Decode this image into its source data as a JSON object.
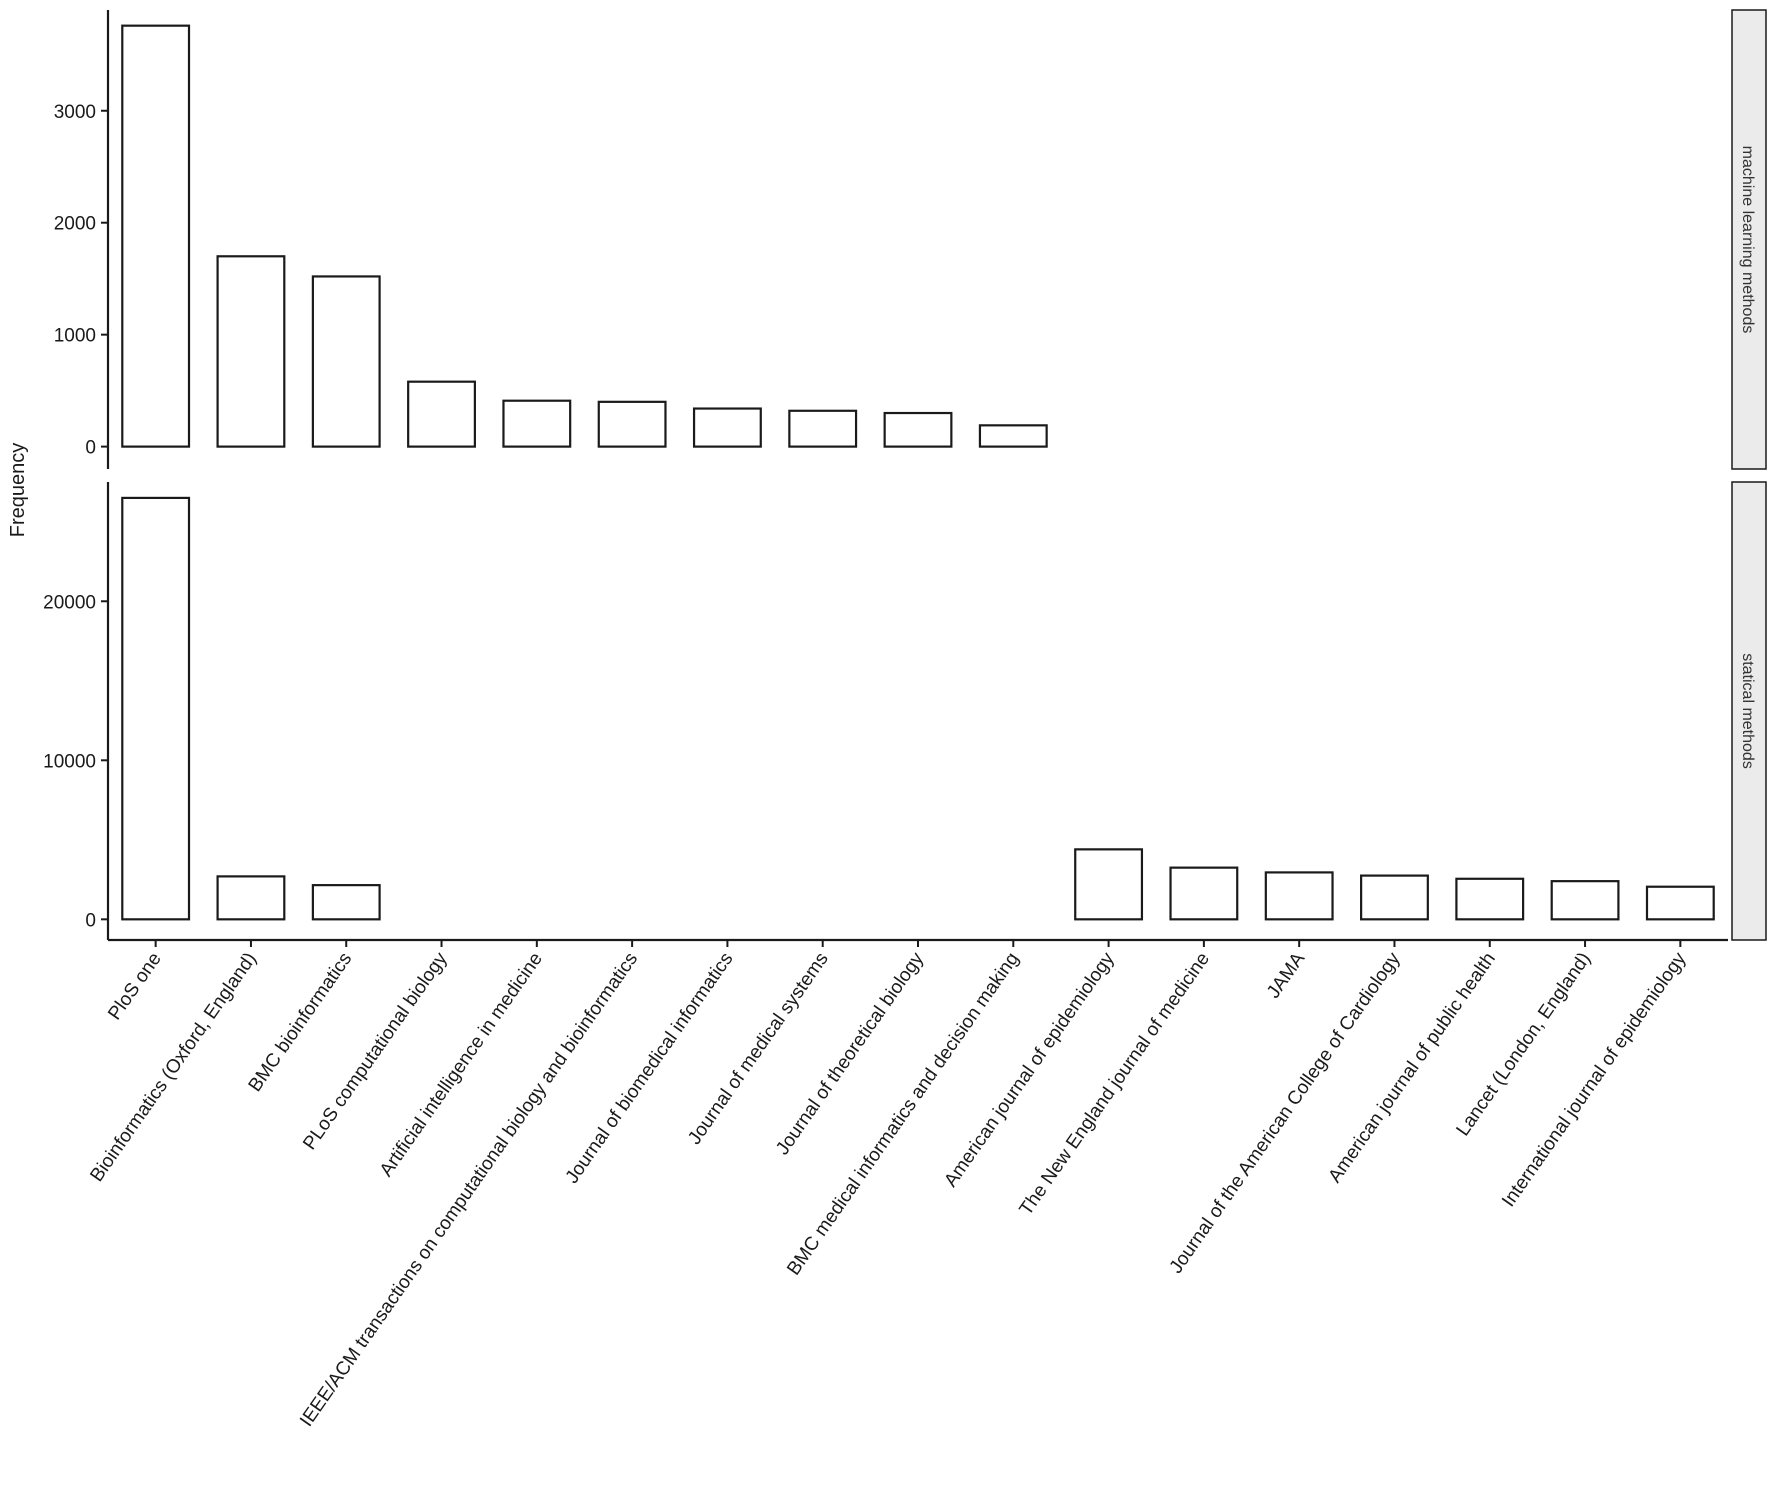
{
  "chart_data": {
    "type": "bar",
    "ylabel": "Frequency",
    "xlabel": "",
    "categories": [
      "PloS one",
      "Bioinformatics (Oxford, England)",
      "BMC bioinformatics",
      "PLoS computational biology",
      "Artificial intelligence in medicine",
      "IEEE/ACM transactions on computational biology and bioinformatics",
      "Journal of biomedical informatics",
      "Journal of medical systems",
      "Journal of theoretical biology",
      "BMC medical informatics and decision making",
      "American journal of epidemiology",
      "The New England journal of medicine",
      "JAMA",
      "Journal of the American College of Cardiology",
      "American journal of public health",
      "Lancet (London, England)",
      "International journal of epidemiology"
    ],
    "facets": [
      {
        "name": "machine learning methods",
        "ylim": [
          -200,
          3900
        ],
        "yticks": [
          0,
          1000,
          2000,
          3000
        ],
        "values": [
          3760,
          1700,
          1520,
          580,
          410,
          400,
          340,
          320,
          300,
          190,
          null,
          null,
          null,
          null,
          null,
          null,
          null
        ]
      },
      {
        "name": "statical methods",
        "ylim": [
          -1300,
          27500
        ],
        "yticks": [
          0,
          10000,
          20000
        ],
        "values": [
          26500,
          2700,
          2150,
          null,
          null,
          null,
          null,
          null,
          null,
          null,
          4400,
          3250,
          2950,
          2750,
          2550,
          2400,
          2050
        ]
      }
    ],
    "grid": false,
    "legend": "none"
  }
}
